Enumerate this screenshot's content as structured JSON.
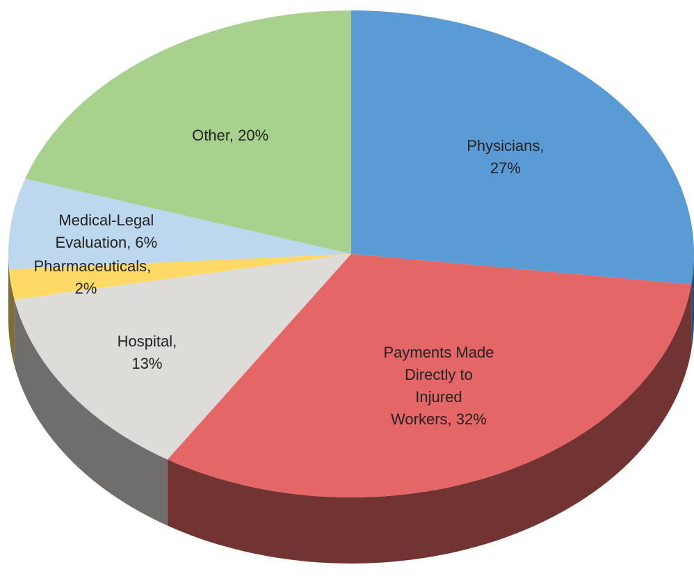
{
  "chart_data": {
    "type": "pie",
    "categories": [
      "Physicians,",
      "Payments Made Directly to Injured Workers,",
      "Hospital,",
      "Pharmaceuticals,",
      "Medical-Legal Evaluation,",
      "Other,"
    ],
    "values": [
      27,
      32,
      13,
      2,
      6,
      20
    ],
    "value_labels": [
      "27%",
      "32%",
      "13%",
      "2%",
      "6%",
      "20%"
    ],
    "colors": [
      "#5b9bd5",
      "#e46666",
      "#dddcd8",
      "#ffd966",
      "#bdd7ee",
      "#a9d18e"
    ],
    "three_d": true
  }
}
